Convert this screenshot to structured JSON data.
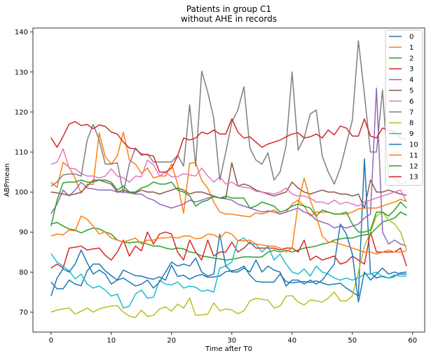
{
  "chart_data": {
    "type": "line",
    "title": "Patients in group C1\nwithout AHE in records",
    "xlabel": "Time after T0",
    "ylabel": "ABPmean",
    "xlim": [
      -3,
      62
    ],
    "ylim": [
      65,
      141
    ],
    "xticks": [
      0,
      10,
      20,
      30,
      40,
      50,
      60
    ],
    "yticks": [
      70,
      80,
      90,
      100,
      110,
      120,
      130,
      140
    ],
    "legend_position": "top-right",
    "series": [
      {
        "name": "0",
        "color": "#1f77b4",
        "values": [
          77.5,
          75.8,
          75.8,
          78.0,
          77.0,
          76.6,
          80.3,
          82.0,
          82.0,
          80.3,
          79.1,
          78.0,
          80.5,
          79.8,
          79.1,
          79.0,
          78.5,
          78.2,
          78.8,
          78.0,
          81.7,
          78.9,
          79.2,
          78.2,
          79.0,
          79.4,
          78.7,
          78.8,
          79.0,
          80.1,
          80.3,
          80.6,
          81.5,
          79.2,
          77.7,
          77.5,
          77.5,
          77.5,
          79.5,
          77.6,
          77.3,
          77.5,
          77.6,
          77.4,
          77.8,
          77.3,
          76.8,
          77.0,
          77.2,
          76.0,
          75.0,
          74.0,
          108.3,
          79.8,
          78.5,
          79.0,
          78.5,
          78.9,
          79.8,
          80.0
        ]
      },
      {
        "name": "1",
        "color": "#ff7f0e",
        "values": [
          102.5,
          101.2,
          107.4,
          106.2,
          103.4,
          99.7,
          102.0,
          101.9,
          114.8,
          108.8,
          107.0,
          109.0,
          115.0,
          108.0,
          107.0,
          104.7,
          106.0,
          103.5,
          104.0,
          104.0,
          107.0,
          102.0,
          94.7,
          107.2,
          107.4,
          102.9,
          101.0,
          97.5,
          95.0,
          94.5,
          94.5,
          94.2,
          94.0,
          93.8,
          94.8,
          94.5,
          95.0,
          95.5,
          94.5,
          95.0,
          97.0,
          98.0,
          96.5,
          94.0,
          95.0,
          95.0,
          95.0,
          94.5,
          94.5,
          94.5,
          95.0,
          95.8,
          96.0,
          96.0,
          96.0,
          96.5,
          97.0,
          97.5,
          98.2,
          97.6
        ]
      },
      {
        "name": "2",
        "color": "#2ca02c",
        "values": [
          92.0,
          92.4,
          91.5,
          90.8,
          90.5,
          89.8,
          90.5,
          91.0,
          90.8,
          90.0,
          89.5,
          88.0,
          87.5,
          87.3,
          87.5,
          87.5,
          87.0,
          86.5,
          86.5,
          86.0,
          85.7,
          86.0,
          85.8,
          85.0,
          84.8,
          84.0,
          83.8,
          83.5,
          83.3,
          83.0,
          83.2,
          83.5,
          83.8,
          83.8,
          83.7,
          83.8,
          85.0,
          85.5,
          85.0,
          85.5,
          85.0,
          85.5,
          86.0,
          86.2,
          86.5,
          87.0,
          87.3,
          88.0,
          88.3,
          88.5,
          88.5,
          89.0,
          89.3,
          89.5,
          91.0,
          92.5,
          93.0,
          93.5,
          95.0,
          94.2
        ]
      },
      {
        "name": "3",
        "color": "#d62728",
        "values": [
          81.0,
          82.0,
          81.0,
          86.0,
          86.2,
          86.5,
          85.5,
          85.8,
          86.0,
          84.2,
          83.0,
          85.0,
          88.0,
          84.0,
          86.5,
          85.3,
          90.0,
          87.0,
          89.5,
          90.0,
          89.5,
          85.0,
          83.0,
          88.0,
          85.0,
          83.0,
          88.0,
          84.0,
          85.0,
          85.0,
          87.5,
          85.0,
          86.0,
          87.5,
          86.0,
          86.0,
          86.0,
          86.0,
          85.5,
          86.0,
          86.0,
          85.0,
          88.0,
          83.0,
          84.0,
          83.0,
          83.5,
          84.0,
          82.0,
          82.5,
          84.0,
          83.0,
          82.0,
          90.0,
          85.0,
          85.0,
          85.0,
          85.0,
          86.0,
          81.5
        ]
      },
      {
        "name": "4",
        "color": "#9467bd",
        "values": [
          94.6,
          97.0,
          100.5,
          99.0,
          100.5,
          102.5,
          101.0,
          100.8,
          100.5,
          100.5,
          100.5,
          100.0,
          100.0,
          99.8,
          99.5,
          99.5,
          98.5,
          98.0,
          97.0,
          96.5,
          96.0,
          96.5,
          97.0,
          98.0,
          97.5,
          98.0,
          98.5,
          98.8,
          98.5,
          98.3,
          98.0,
          97.0,
          96.5,
          96.0,
          95.5,
          95.0,
          95.3,
          95.0,
          94.5,
          95.0,
          95.5,
          96.0,
          95.0,
          94.5,
          93.0,
          92.5,
          92.0,
          91.0,
          91.5,
          91.0,
          91.5,
          92.0,
          93.5,
          94.5,
          126.0,
          90.0,
          87.0,
          88.0,
          87.0,
          86.5
        ]
      },
      {
        "name": "5",
        "color": "#8c564b",
        "values": [
          100.0,
          99.8,
          99.5,
          99.2,
          99.5,
          100.0,
          101.5,
          103.0,
          103.0,
          102.5,
          102.0,
          100.0,
          100.5,
          100.0,
          99.8,
          100.5,
          100.0,
          100.0,
          99.5,
          100.0,
          100.5,
          101.0,
          100.5,
          99.5,
          100.0,
          100.0,
          99.5,
          99.0,
          98.5,
          98.5,
          107.3,
          101.5,
          102.0,
          101.5,
          100.5,
          100.0,
          99.5,
          99.0,
          99.5,
          100.0,
          102.5,
          101.0,
          100.0,
          99.5,
          100.0,
          100.5,
          100.0,
          100.0,
          99.5,
          99.5,
          99.0,
          99.5,
          96.0,
          103.0,
          100.0,
          100.0,
          100.5,
          100.0,
          99.5,
          99.2
        ]
      },
      {
        "name": "6",
        "color": "#e377c2",
        "values": [
          106.9,
          107.5,
          110.8,
          106.0,
          105.8,
          104.6,
          104.0,
          104.0,
          103.5,
          104.0,
          105.8,
          104.0,
          103.6,
          102.5,
          104.0,
          103.8,
          108.0,
          106.8,
          104.0,
          105.0,
          103.8,
          103.8,
          104.6,
          104.3,
          104.0,
          106.0,
          104.0,
          102.5,
          103.8,
          102.0,
          102.5,
          101.5,
          101.2,
          101.0,
          100.2,
          100.0,
          99.8,
          99.5,
          100.0,
          101.0,
          99.5,
          99.0,
          99.0,
          98.5,
          97.5,
          97.5,
          97.0,
          98.0,
          97.0,
          97.5,
          97.0,
          96.5,
          97.5,
          98.0,
          98.5,
          99.0,
          99.5,
          100.0,
          100.5,
          97.5
        ]
      },
      {
        "name": "7",
        "color": "#7f7f7f",
        "values": [
          101.5,
          102.5,
          104.3,
          104.5,
          104.5,
          104.0,
          113.0,
          116.9,
          113.0,
          107.0,
          107.0,
          107.3,
          99.8,
          107.0,
          111.0,
          109.2,
          109.5,
          107.5,
          107.5,
          107.5,
          107.5,
          109.2,
          106.5,
          121.8,
          106.5,
          130.2,
          125.0,
          118.5,
          103.0,
          110.0,
          117.5,
          120.5,
          126.3,
          111.0,
          108.0,
          107.0,
          109.8,
          103.0,
          105.0,
          111.5,
          130.0,
          110.5,
          113.5,
          119.5,
          120.5,
          109.0,
          105.0,
          102.0,
          106.0,
          112.0,
          118.0,
          137.8,
          124.5,
          110.0,
          110.0,
          125.5,
          103.5,
          103.5,
          102.0,
          102.5
        ]
      },
      {
        "name": "8",
        "color": "#bcbd22",
        "values": [
          70.0,
          70.5,
          70.8,
          71.0,
          69.5,
          70.2,
          71.0,
          70.0,
          70.8,
          71.2,
          71.5,
          71.6,
          70.0,
          69.0,
          68.6,
          70.5,
          68.9,
          69.2,
          70.8,
          71.3,
          70.2,
          72.0,
          71.0,
          73.5,
          69.2,
          69.3,
          69.5,
          72.3,
          70.3,
          70.8,
          70.5,
          69.6,
          70.3,
          72.8,
          73.4,
          73.2,
          73.0,
          71.0,
          71.5,
          74.0,
          74.1,
          72.5,
          71.8,
          73.0,
          72.8,
          72.5,
          73.5,
          75.0,
          72.8,
          72.8,
          74.0,
          80.0,
          86.5,
          90.0,
          94.0,
          95.0,
          93.0,
          92.0,
          90.0,
          85.5
        ]
      },
      {
        "name": "9",
        "color": "#17becf",
        "values": [
          84.6,
          82.5,
          81.5,
          80.3,
          78.3,
          79.5,
          77.0,
          76.0,
          76.5,
          75.5,
          74.0,
          74.5,
          71.0,
          71.5,
          74.5,
          75.5,
          73.5,
          73.7,
          78.0,
          77.0,
          76.8,
          77.5,
          76.0,
          76.5,
          76.2,
          75.2,
          75.5,
          75.0,
          81.0,
          81.5,
          82.5,
          87.8,
          88.5,
          87.0,
          87.0,
          85.0,
          86.5,
          83.0,
          84.5,
          82.0,
          80.0,
          79.5,
          80.8,
          79.0,
          81.5,
          80.0,
          79.5,
          78.5,
          78.0,
          78.5,
          78.0,
          78.5,
          79.5,
          79.5,
          80.0,
          78.8,
          78.5,
          79.3,
          79.0,
          79.0
        ]
      },
      {
        "name": "10",
        "color": "#1f77b4",
        "values": [
          74.0,
          78.5,
          80.8,
          80.0,
          82.0,
          85.5,
          82.3,
          79.5,
          80.5,
          79.5,
          77.0,
          78.0,
          78.5,
          77.5,
          76.5,
          77.0,
          78.0,
          76.0,
          77.5,
          80.0,
          82.5,
          81.5,
          82.0,
          81.5,
          83.5,
          80.0,
          79.0,
          79.5,
          89.5,
          81.5,
          80.0,
          80.0,
          81.0,
          80.0,
          83.0,
          80.0,
          81.5,
          80.5,
          80.0,
          76.5,
          78.0,
          78.0,
          77.0,
          78.0,
          77.0,
          78.0,
          80.0,
          82.0,
          92.0,
          89.5,
          84.5,
          72.5,
          80.0,
          78.0,
          79.5,
          81.0,
          79.5,
          80.0,
          79.5,
          79.5
        ]
      },
      {
        "name": "11",
        "color": "#ff7f0e",
        "values": [
          89.0,
          89.5,
          89.3,
          90.5,
          90.3,
          94.0,
          93.2,
          91.5,
          89.5,
          90.0,
          88.5,
          88.0,
          87.5,
          88.0,
          88.5,
          87.0,
          88.0,
          88.0,
          88.5,
          88.5,
          88.8,
          88.5,
          89.0,
          89.0,
          88.3,
          88.5,
          89.5,
          89.3,
          88.5,
          90.0,
          89.5,
          87.8,
          87.8,
          88.0,
          87.0,
          86.8,
          86.5,
          86.5,
          86.0,
          85.0,
          86.0,
          97.0,
          103.5,
          98.0,
          94.0,
          89.0,
          87.5,
          87.5,
          87.0,
          86.5,
          86.0,
          85.5,
          85.0,
          85.0,
          84.5,
          85.0,
          85.5,
          85.0,
          85.0,
          85.3
        ]
      },
      {
        "name": "12",
        "color": "#2ca02c",
        "values": [
          91.5,
          98.0,
          102.3,
          102.5,
          102.5,
          103.0,
          102.5,
          102.5,
          103.0,
          103.0,
          102.5,
          100.5,
          101.5,
          100.0,
          100.0,
          101.0,
          101.5,
          102.5,
          102.0,
          102.0,
          102.5,
          100.5,
          100.0,
          99.0,
          96.5,
          97.5,
          98.0,
          99.0,
          98.5,
          99.0,
          98.5,
          98.5,
          98.5,
          96.0,
          96.5,
          97.5,
          97.0,
          96.5,
          95.0,
          95.5,
          96.5,
          97.0,
          96.5,
          96.0,
          94.0,
          95.5,
          95.0,
          94.5,
          94.5,
          95.0,
          92.0,
          90.0,
          90.0,
          90.5,
          95.0,
          95.0,
          94.0,
          95.5,
          97.5,
          96.0
        ]
      },
      {
        "name": "13",
        "color": "#d62728",
        "values": [
          113.6,
          111.2,
          113.9,
          117.0,
          117.6,
          116.6,
          116.9,
          115.8,
          116.8,
          116.4,
          115.0,
          114.5,
          112.5,
          111.0,
          110.8,
          109.5,
          109.3,
          109.0,
          105.0,
          105.0,
          106.0,
          109.0,
          113.5,
          113.0,
          113.5,
          115.0,
          114.5,
          115.5,
          114.5,
          114.5,
          118.3,
          115.0,
          113.5,
          113.8,
          112.5,
          111.2,
          112.0,
          112.5,
          113.0,
          113.8,
          114.5,
          114.8,
          113.5,
          113.8,
          114.5,
          113.5,
          115.5,
          114.3,
          116.5,
          116.0,
          114.0,
          114.0,
          118.3,
          114.0,
          113.5,
          116.0,
          115.5,
          115.0,
          113.5,
          113.0
        ]
      }
    ]
  }
}
